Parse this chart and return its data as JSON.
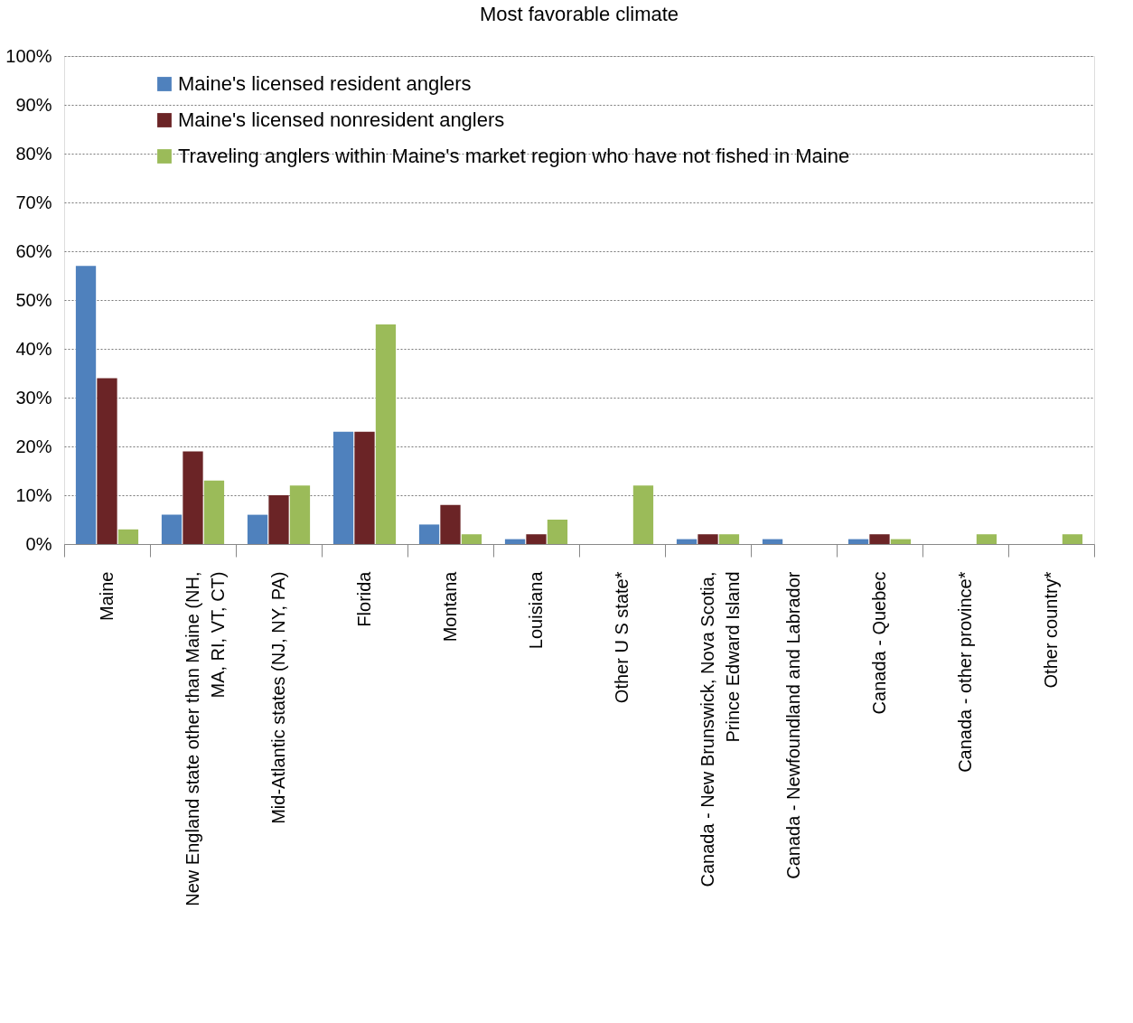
{
  "chart_data": {
    "type": "bar",
    "title": "Most favorable climate",
    "categories": [
      "Maine",
      "New England state other than Maine (NH,\nMA, RI, VT, CT)",
      "Mid-Atlantic states (NJ, NY, PA)",
      "Florida",
      "Montana",
      "Louisiana",
      "Other U S state*",
      "Canada - New Brunswick, Nova Scotia,\nPrince Edward Island",
      "Canada - Newfoundland and Labrador",
      "Canada - Quebec",
      "Canada - other province*",
      "Other country*"
    ],
    "series": [
      {
        "name": "Maine's licensed resident anglers",
        "color": "#4f81bd",
        "values": [
          57,
          6,
          6,
          23,
          4,
          1,
          0,
          1,
          1,
          1,
          0,
          0
        ]
      },
      {
        "name": "Maine's licensed nonresident anglers",
        "color": "#6b2426",
        "values": [
          34,
          19,
          10,
          23,
          8,
          2,
          0,
          2,
          0,
          2,
          0,
          0
        ]
      },
      {
        "name": "Traveling anglers within Maine's market region who have not fished in Maine",
        "color": "#9bbb59",
        "values": [
          3,
          13,
          12,
          45,
          2,
          5,
          12,
          2,
          0,
          1,
          2,
          2
        ]
      }
    ],
    "ylim": [
      0,
      100
    ],
    "yticks": [
      {
        "value": 0,
        "label": "0%"
      },
      {
        "value": 10,
        "label": "10%"
      },
      {
        "value": 20,
        "label": "20%"
      },
      {
        "value": 30,
        "label": "30%"
      },
      {
        "value": 40,
        "label": "40%"
      },
      {
        "value": 50,
        "label": "50%"
      },
      {
        "value": 60,
        "label": "60%"
      },
      {
        "value": 70,
        "label": "70%"
      },
      {
        "value": 80,
        "label": "80%"
      },
      {
        "value": 90,
        "label": "90%"
      },
      {
        "value": 100,
        "label": "100%"
      }
    ],
    "grid": "y",
    "legend": "top left"
  }
}
